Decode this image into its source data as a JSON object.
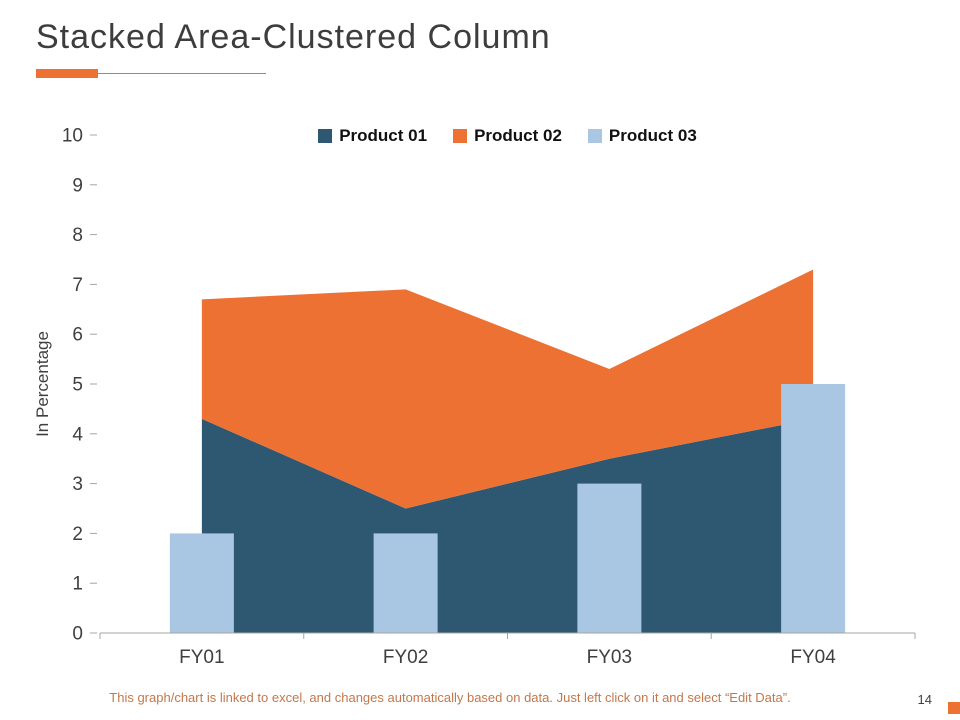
{
  "header": {
    "title": "Stacked Area-Clustered Column"
  },
  "colors": {
    "accent_orange": "#ED7133",
    "title_text": "#3D3D3D",
    "axis_line": "#A6A6A6",
    "tick_text": "#3F3F3F",
    "footer_text": "#C4774B",
    "series_dark_blue": "#2E5771",
    "series_orange": "#ED7133",
    "series_light_blue": "#A9C7E3"
  },
  "chart_data": {
    "type": "combo",
    "subtypes": {
      "area": "stacked",
      "column": "clustered"
    },
    "title": "Stacked Area-Clustered Column",
    "categories": [
      "FY01",
      "FY02",
      "FY03",
      "FY04"
    ],
    "series": [
      {
        "name": "Product 01",
        "type": "area",
        "values": [
          4.3,
          2.5,
          3.5,
          4.3
        ],
        "color": "#2E5771"
      },
      {
        "name": "Product 02",
        "type": "area",
        "values": [
          2.4,
          4.4,
          1.8,
          3.0
        ],
        "color": "#ED7133"
      },
      {
        "name": "Product 03",
        "type": "column",
        "values": [
          2,
          2,
          3,
          5
        ],
        "color": "#A9C7E3"
      }
    ],
    "stacked_area_tops": {
      "product_01": [
        4.3,
        2.5,
        3.5,
        4.3
      ],
      "product_02_cumulative": [
        6.7,
        6.9,
        5.3,
        7.3
      ]
    },
    "xlabel": "",
    "ylabel": "In Percentage",
    "ylim": [
      0,
      10
    ],
    "ytick_step": 1,
    "legend_position": "top",
    "grid": false
  },
  "footer": {
    "note": "This graph/chart is linked to excel, and changes automatically based on data. Just left click on it and select “Edit Data”.",
    "page_number": "14"
  }
}
